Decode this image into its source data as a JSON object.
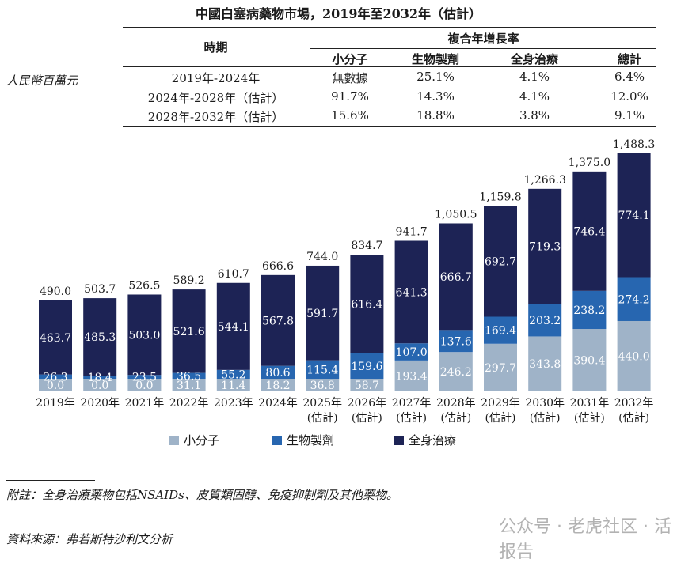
{
  "title": "中國白塞病藥物市場，2019年至2032年（估計）",
  "cagr_table": {
    "period_header": "時期",
    "cagr_header": "複合年增長率",
    "columns": [
      "小分子",
      "生物製劑",
      "全身治療",
      "總計"
    ],
    "rows": [
      {
        "period": "2019年-2024年",
        "values": [
          "無數據",
          "25.1%",
          "4.1%",
          "6.4%"
        ]
      },
      {
        "period": "2024年-2028年（估計）",
        "values": [
          "91.7%",
          "14.3%",
          "4.1%",
          "12.0%"
        ]
      },
      {
        "period": "2028年-2032年（估計）",
        "values": [
          "15.6%",
          "18.8%",
          "3.8%",
          "9.1%"
        ]
      }
    ]
  },
  "unit": "人民幣百萬元",
  "chart_data": {
    "type": "bar",
    "stacked": true,
    "categories": [
      [
        "2019年"
      ],
      [
        "2020年"
      ],
      [
        "2021年"
      ],
      [
        "2022年"
      ],
      [
        "2023年"
      ],
      [
        "2024年"
      ],
      [
        "2025年",
        "(估計)"
      ],
      [
        "2026年",
        "(估計)"
      ],
      [
        "2027年",
        "(估計)"
      ],
      [
        "2028年",
        "(估計)"
      ],
      [
        "2029年",
        "(估計)"
      ],
      [
        "2030年",
        "(估計)"
      ],
      [
        "2031年",
        "(估計)"
      ],
      [
        "2032年",
        "(估計)"
      ]
    ],
    "series": [
      {
        "name": "小分子",
        "color": "#9fb3c8",
        "values": [
          0.0,
          0.0,
          0.0,
          31.1,
          11.4,
          18.2,
          36.8,
          58.7,
          193.4,
          246.2,
          297.7,
          343.8,
          390.4,
          440.0
        ]
      },
      {
        "name": "生物製劑",
        "color": "#2766b0",
        "values": [
          26.3,
          18.4,
          23.5,
          36.5,
          55.2,
          80.6,
          115.4,
          159.6,
          107.0,
          137.6,
          169.4,
          203.2,
          238.2,
          274.2
        ]
      },
      {
        "name": "全身治療",
        "color": "#1d2355",
        "values": [
          463.7,
          485.3,
          503.0,
          521.6,
          544.1,
          567.8,
          591.7,
          616.4,
          641.3,
          666.7,
          692.7,
          719.3,
          746.4,
          774.1
        ]
      }
    ],
    "totals": [
      490.0,
      503.7,
      526.5,
      589.2,
      610.7,
      666.6,
      744.0,
      834.7,
      941.7,
      1050.5,
      1159.8,
      1266.3,
      1375.0,
      1488.3
    ],
    "zero_segment_labels": true
  },
  "footnote": "附註：全身治療藥物包括NSAIDs、皮質類固醇、免疫抑制劑及其他藥物。",
  "source": "資料來源：弗若斯特沙利文分析",
  "watermark": "公众号 · 老虎社区 · 活报告"
}
